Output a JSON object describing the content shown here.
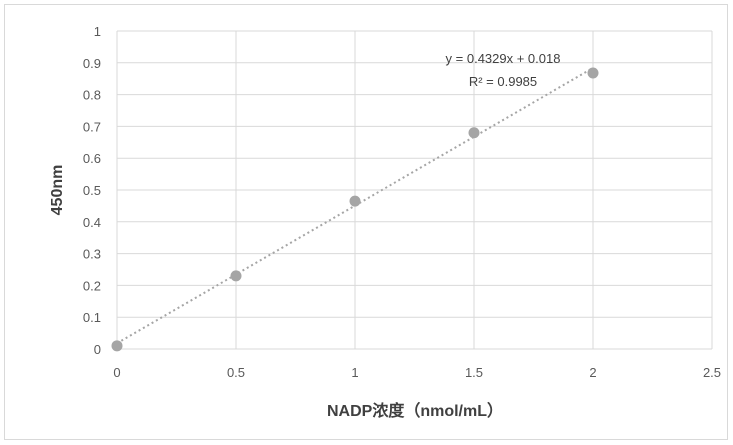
{
  "chart_data": {
    "type": "scatter",
    "title": "",
    "xlabel": "NADP浓度（nmol/mL）",
    "ylabel": "450nm",
    "xlim": [
      0,
      2.5
    ],
    "ylim": [
      0,
      1
    ],
    "x_ticks": [
      "0",
      "0.5",
      "1",
      "1.5",
      "2",
      "2.5"
    ],
    "y_ticks": [
      "0",
      "0.1",
      "0.2",
      "0.3",
      "0.4",
      "0.5",
      "0.6",
      "0.7",
      "0.8",
      "0.9",
      "1"
    ],
    "grid": true,
    "series": [
      {
        "x": [
          0,
          0.5,
          1,
          1.5,
          2
        ],
        "y": [
          0.01,
          0.23,
          0.465,
          0.68,
          0.868
        ],
        "color": "#a5a5a5"
      }
    ],
    "trendline": {
      "type": "linear",
      "slope": 0.4329,
      "intercept": 0.018,
      "style": "dotted",
      "color": "#a5a5a5",
      "equation": "y = 0.4329x + 0.018",
      "r_squared": "R² = 0.9985"
    }
  }
}
